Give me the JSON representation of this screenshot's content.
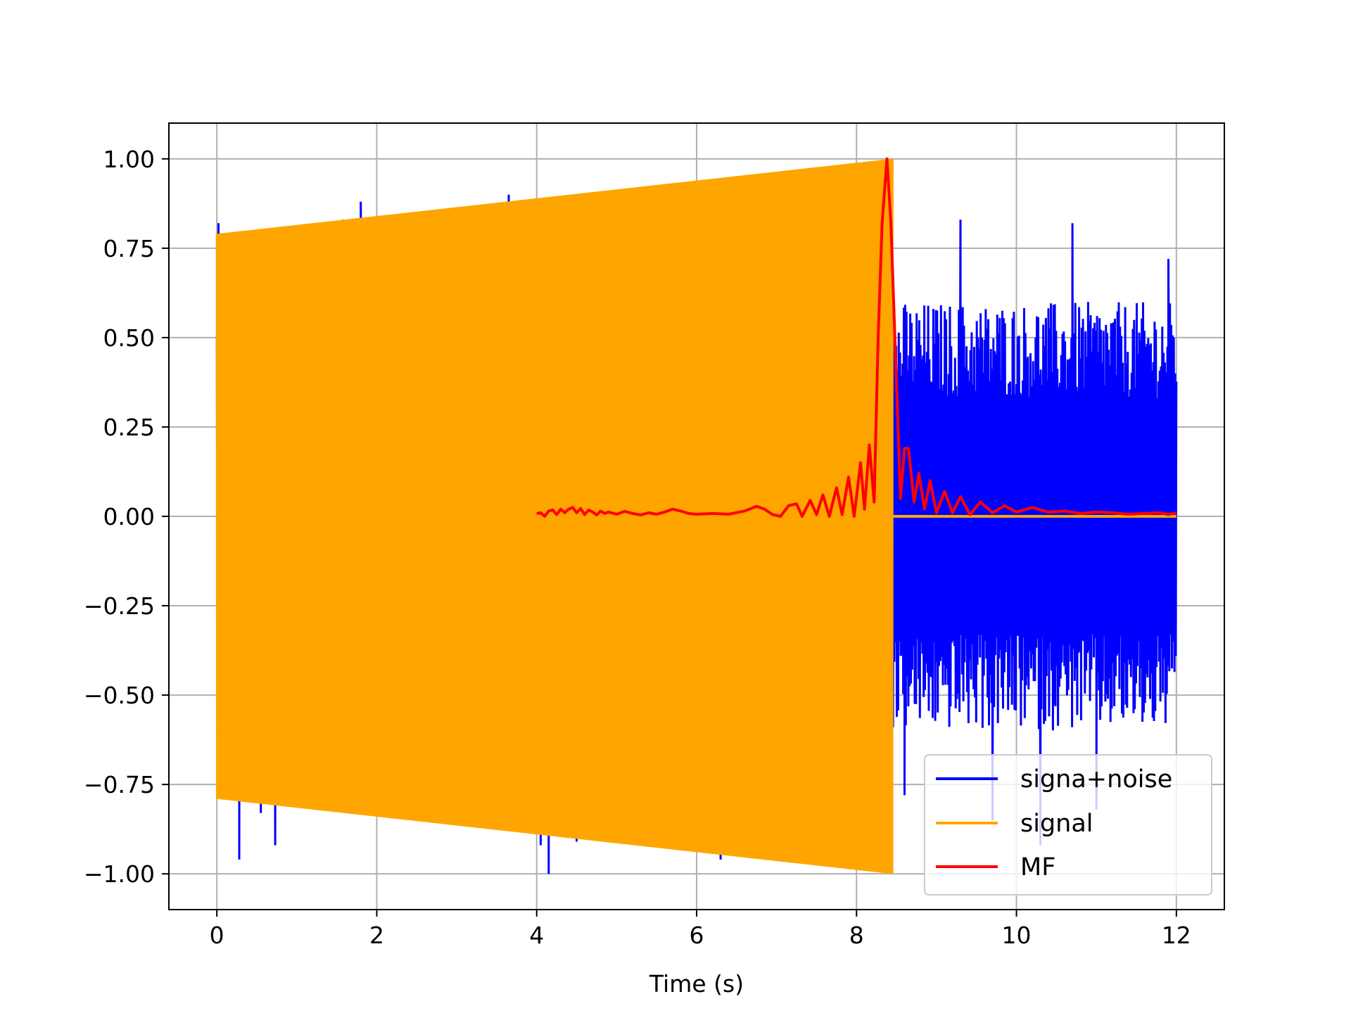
{
  "chart_data": {
    "type": "line",
    "title": "",
    "xlabel": "Time (s)",
    "ylabel": "",
    "xlim": [
      -0.6,
      12.6
    ],
    "ylim": [
      -1.1,
      1.1
    ],
    "grid": true,
    "legend_position": "lower-right",
    "x_ticks": [
      0,
      2,
      4,
      6,
      8,
      10,
      12
    ],
    "x_tick_labels": [
      "0",
      "2",
      "4",
      "6",
      "8",
      "10",
      "12"
    ],
    "y_ticks": [
      1.0,
      0.75,
      0.5,
      0.25,
      0.0,
      -0.25,
      -0.5,
      -0.75,
      -1.0
    ],
    "y_tick_labels": [
      "1.00",
      "0.75",
      "0.50",
      "0.25",
      "0.00",
      "−0.25",
      "−0.50",
      "−0.75",
      "−1.00"
    ],
    "series": [
      {
        "name": "signa+noise",
        "color": "#0000ff",
        "noise_envelope": {
          "x_range": [
            0,
            12
          ],
          "typical_amplitude": 0.6,
          "spike_maxima": [
            [
              0.02,
              0.82
            ],
            [
              1.58,
              0.83
            ],
            [
              1.8,
              0.88
            ],
            [
              3.65,
              0.9
            ],
            [
              3.9,
              0.86
            ],
            [
              9.3,
              0.83
            ],
            [
              10.7,
              0.82
            ],
            [
              11.9,
              0.72
            ]
          ],
          "spike_minima": [
            [
              0.28,
              -0.96
            ],
            [
              0.55,
              -0.83
            ],
            [
              0.73,
              -0.92
            ],
            [
              2.68,
              -0.84
            ],
            [
              4.05,
              -0.92
            ],
            [
              4.15,
              -1.0
            ],
            [
              4.5,
              -0.91
            ],
            [
              6.3,
              -0.96
            ],
            [
              8.6,
              -0.78
            ],
            [
              9.7,
              -0.85
            ],
            [
              10.3,
              -0.92
            ],
            [
              11.0,
              -0.82
            ]
          ]
        }
      },
      {
        "name": "signal",
        "color": "#ffa500",
        "chirp_envelope": {
          "x_start": 0.0,
          "x_end": 8.45,
          "amplitude_start": 0.79,
          "amplitude_end": 1.0,
          "zero_after": [
            8.45,
            12.0
          ]
        }
      },
      {
        "name": "MF",
        "color": "#ff0000",
        "points": [
          [
            4.0,
            0.008
          ],
          [
            4.05,
            0.01
          ],
          [
            4.1,
            0.0
          ],
          [
            4.15,
            0.015
          ],
          [
            4.2,
            0.018
          ],
          [
            4.25,
            0.005
          ],
          [
            4.3,
            0.02
          ],
          [
            4.35,
            0.01
          ],
          [
            4.4,
            0.02
          ],
          [
            4.45,
            0.025
          ],
          [
            4.5,
            0.01
          ],
          [
            4.55,
            0.022
          ],
          [
            4.6,
            0.005
          ],
          [
            4.65,
            0.018
          ],
          [
            4.7,
            0.012
          ],
          [
            4.75,
            0.004
          ],
          [
            4.8,
            0.015
          ],
          [
            4.85,
            0.008
          ],
          [
            4.9,
            0.012
          ],
          [
            5.0,
            0.006
          ],
          [
            5.1,
            0.014
          ],
          [
            5.2,
            0.008
          ],
          [
            5.3,
            0.004
          ],
          [
            5.4,
            0.01
          ],
          [
            5.5,
            0.006
          ],
          [
            5.6,
            0.012
          ],
          [
            5.7,
            0.02
          ],
          [
            5.8,
            0.015
          ],
          [
            5.9,
            0.008
          ],
          [
            6.0,
            0.006
          ],
          [
            6.2,
            0.008
          ],
          [
            6.4,
            0.006
          ],
          [
            6.6,
            0.015
          ],
          [
            6.75,
            0.028
          ],
          [
            6.85,
            0.02
          ],
          [
            6.95,
            0.005
          ],
          [
            7.05,
            0.0
          ],
          [
            7.15,
            0.03
          ],
          [
            7.25,
            0.035
          ],
          [
            7.32,
            0.0
          ],
          [
            7.42,
            0.045
          ],
          [
            7.5,
            0.005
          ],
          [
            7.58,
            0.06
          ],
          [
            7.66,
            0.0
          ],
          [
            7.75,
            0.08
          ],
          [
            7.82,
            0.005
          ],
          [
            7.9,
            0.11
          ],
          [
            7.97,
            0.0
          ],
          [
            8.05,
            0.15
          ],
          [
            8.1,
            0.02
          ],
          [
            8.16,
            0.2
          ],
          [
            8.22,
            0.04
          ],
          [
            8.27,
            0.5
          ],
          [
            8.32,
            0.82
          ],
          [
            8.38,
            1.0
          ],
          [
            8.43,
            0.82
          ],
          [
            8.48,
            0.5
          ],
          [
            8.55,
            0.05
          ],
          [
            8.6,
            0.19
          ],
          [
            8.65,
            0.19
          ],
          [
            8.72,
            0.04
          ],
          [
            8.78,
            0.12
          ],
          [
            8.85,
            0.02
          ],
          [
            8.92,
            0.1
          ],
          [
            9.0,
            0.01
          ],
          [
            9.1,
            0.07
          ],
          [
            9.2,
            0.01
          ],
          [
            9.3,
            0.055
          ],
          [
            9.42,
            0.005
          ],
          [
            9.55,
            0.04
          ],
          [
            9.7,
            0.01
          ],
          [
            9.85,
            0.03
          ],
          [
            10.0,
            0.012
          ],
          [
            10.2,
            0.025
          ],
          [
            10.4,
            0.012
          ],
          [
            10.6,
            0.015
          ],
          [
            10.8,
            0.008
          ],
          [
            11.0,
            0.012
          ],
          [
            11.2,
            0.01
          ],
          [
            11.4,
            0.006
          ],
          [
            11.6,
            0.008
          ],
          [
            11.8,
            0.01
          ],
          [
            11.9,
            0.005
          ],
          [
            12.0,
            0.01
          ]
        ]
      }
    ]
  }
}
